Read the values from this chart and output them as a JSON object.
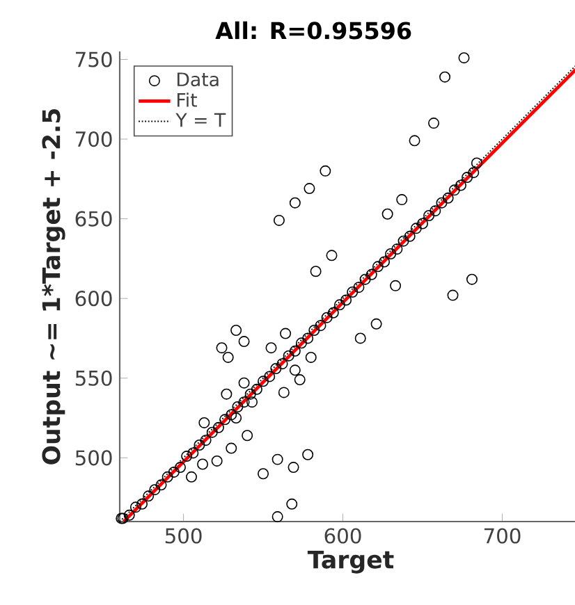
{
  "chart_data": {
    "type": "scatter",
    "title": "All: R=0.95596",
    "xlabel": "Target",
    "ylabel": "Output ~= 1*Target + -2.5",
    "xlim": [
      460,
      750
    ],
    "ylim": [
      460,
      755
    ],
    "xticks": [
      500,
      600,
      700
    ],
    "yticks": [
      500,
      550,
      600,
      650,
      700,
      750
    ],
    "grid": false,
    "legend": "top left",
    "series": [
      {
        "name": "Data",
        "marker": "circle",
        "color": "#000000",
        "x": [
          676,
          664,
          657,
          645,
          684,
          560,
          570,
          579,
          589,
          628,
          637,
          593,
          583,
          633,
          681,
          669,
          621,
          611,
          564,
          555,
          533,
          524,
          528,
          538,
          580,
          570,
          573,
          563,
          538,
          527,
          513,
          533,
          543,
          540,
          530,
          521,
          512,
          505,
          559,
          550,
          569,
          578,
          568,
          559,
          461,
          462,
          466,
          470,
          474,
          478,
          482,
          486,
          490,
          494,
          498,
          502,
          506,
          510,
          514,
          518,
          522,
          526,
          530,
          534,
          538,
          542,
          546,
          550,
          554,
          558,
          562,
          566,
          570,
          574,
          578,
          582,
          586,
          590,
          594,
          598,
          602,
          606,
          610,
          614,
          618,
          622,
          626,
          630,
          634,
          638,
          642,
          646,
          650,
          654,
          658,
          662,
          666,
          670,
          674,
          678,
          682
        ],
        "values": [
          751,
          739,
          710,
          699,
          685,
          649,
          660,
          669,
          680,
          653,
          662,
          627,
          617,
          608,
          612,
          602,
          584,
          575,
          578,
          569,
          580,
          569,
          563,
          573,
          563,
          555,
          549,
          541,
          547,
          540,
          522,
          525,
          535,
          514,
          506,
          498,
          496,
          488,
          499,
          490,
          494,
          502,
          471,
          463,
          462,
          462,
          464,
          469,
          471,
          476,
          480,
          483,
          488,
          491,
          494,
          501,
          503,
          508,
          511,
          516,
          519,
          524,
          527,
          532,
          535,
          540,
          543,
          548,
          551,
          556,
          559,
          564,
          567,
          572,
          575,
          580,
          583,
          588,
          591,
          596,
          599,
          604,
          607,
          612,
          615,
          620,
          623,
          628,
          631,
          636,
          639,
          644,
          647,
          652,
          655,
          660,
          663,
          668,
          671,
          676,
          679
        ]
      },
      {
        "name": "Fit",
        "type": "line",
        "line_style": "solid",
        "marker": "none",
        "color": "#ff0000",
        "x": [
          462.5,
          750
        ],
        "values": [
          460,
          747.5
        ]
      },
      {
        "name": "Y = T",
        "type": "line",
        "line_style": "dotted",
        "marker": "none",
        "color": "#000000",
        "x": [
          460,
          750
        ],
        "values": [
          460,
          750
        ]
      }
    ]
  }
}
